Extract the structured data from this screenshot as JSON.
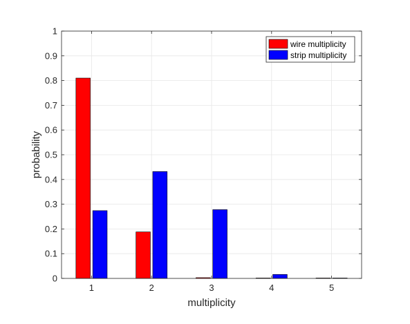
{
  "chart_data": {
    "type": "bar",
    "categories": [
      "1",
      "2",
      "3",
      "4",
      "5"
    ],
    "series": [
      {
        "name": "wire multiplicity",
        "color": "#ff0000",
        "values": [
          0.81,
          0.188,
          0.003,
          0.001,
          0.0005
        ]
      },
      {
        "name": "strip multiplicity",
        "color": "#0000ff",
        "values": [
          0.274,
          0.432,
          0.278,
          0.016,
          0.001
        ]
      }
    ],
    "title": "",
    "xlabel": "multiplicity",
    "ylabel": "probability",
    "ylim": [
      0,
      1
    ],
    "yticks": [
      "0",
      "0.1",
      "0.2",
      "0.3",
      "0.4",
      "0.5",
      "0.6",
      "0.7",
      "0.8",
      "0.9",
      "1"
    ],
    "grid": true,
    "legend_position": "top-right"
  }
}
